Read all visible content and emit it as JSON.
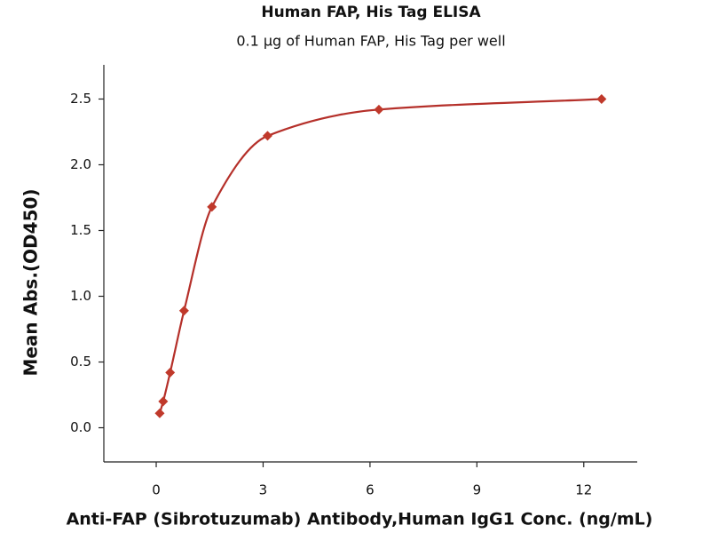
{
  "chart_data": {
    "type": "line",
    "title": "Human FAP, His Tag ELISA",
    "subtitle": "0.1 µg of Human FAP, His Tag per well",
    "x_label": "Anti-FAP (Sibrotuzumab) Antibody,Human IgG1 Conc. (ng/mL)",
    "y_label": "Mean Abs.(OD450)",
    "x": [
      0.09765625,
      0.1953125,
      0.390625,
      0.78125,
      1.5625,
      3.125,
      6.25,
      12.5
    ],
    "values": [
      0.11,
      0.2,
      0.42,
      0.89,
      1.68,
      2.22,
      2.42,
      2.5
    ],
    "color": "#c0392b",
    "line_color": "#b5302a",
    "marker": "diamond",
    "smooth": true,
    "xlim": [
      -1.47,
      13.5
    ],
    "ylim": [
      -0.26,
      2.76
    ],
    "xticks": [
      0,
      3,
      6,
      9,
      12
    ],
    "yticks": [
      {
        "value": 0,
        "label": "0.0"
      },
      0.5,
      {
        "value": 1,
        "label": "1.0"
      },
      1.5,
      {
        "value": 2,
        "label": "2.0"
      },
      2.5
    ],
    "grid": false
  }
}
